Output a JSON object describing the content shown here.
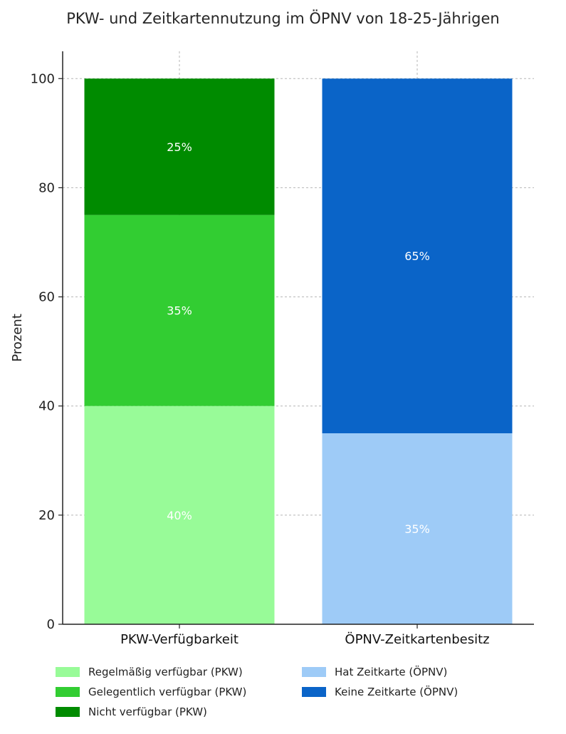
{
  "chart_data": {
    "type": "bar",
    "stacked": true,
    "title": "PKW- und Zeitkartennutzung im ÖPNV von 18-25-Jährigen",
    "xlabel": "",
    "ylabel": "Prozent",
    "ylim": [
      0,
      105
    ],
    "yticks": [
      "0",
      "20",
      "40",
      "60",
      "80",
      "100"
    ],
    "grid": true,
    "legend_position": "bottom",
    "categories": [
      "PKW-Verfügbarkeit",
      "ÖPNV-Zeitkartenbesitz"
    ],
    "series": [
      {
        "name": "Regelmäßig verfügbar (PKW)",
        "category": "PKW-Verfügbarkeit",
        "value": 40,
        "label": "40%",
        "color": "#98fb98"
      },
      {
        "name": "Gelegentlich verfügbar (PKW)",
        "category": "PKW-Verfügbarkeit",
        "value": 35,
        "label": "35%",
        "color": "#32cd32"
      },
      {
        "name": "Nicht verfügbar (PKW)",
        "category": "PKW-Verfügbarkeit",
        "value": 25,
        "label": "25%",
        "color": "#008b00"
      },
      {
        "name": "Hat Zeitkarte (ÖPNV)",
        "category": "ÖPNV-Zeitkartenbesitz",
        "value": 35,
        "label": "35%",
        "color": "#9ecbf7"
      },
      {
        "name": "Keine Zeitkarte (ÖPNV)",
        "category": "ÖPNV-Zeitkartenbesitz",
        "value": 65,
        "label": "65%",
        "color": "#0a64c8"
      }
    ]
  }
}
